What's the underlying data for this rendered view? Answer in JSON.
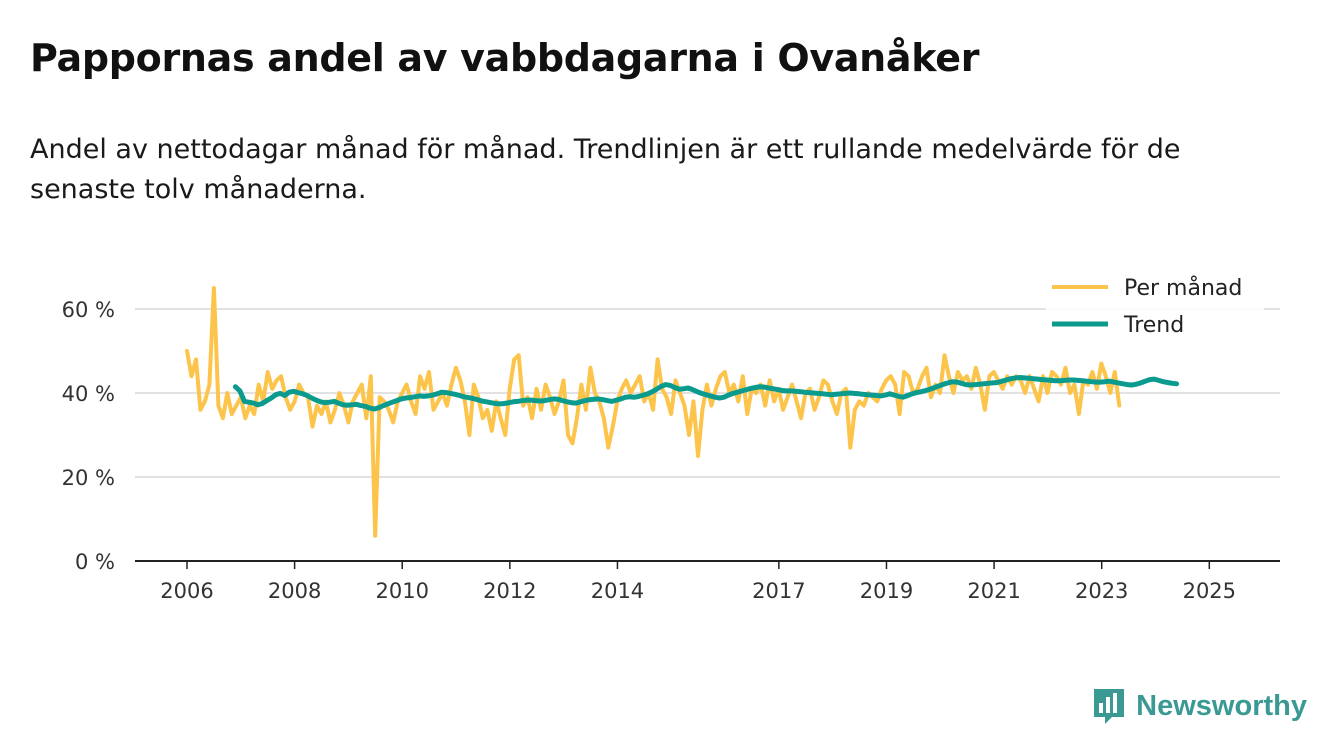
{
  "title": "Pappornas andel av vabbdagarna i Ovanåker",
  "subtitle": "Andel av nettodagar månad för månad. Trendlinjen är ett rullande medelvärde för de senaste tolv månaderna.",
  "brand": {
    "name": "Newsworthy",
    "color": "#3a9a93",
    "icon": "bar-chart-speech-bubble-icon"
  },
  "chart_data": {
    "type": "line",
    "title": "Pappornas andel av vabbdagarna i Ovanåker",
    "xlabel": "",
    "ylabel": "",
    "ylim": [
      0,
      70
    ],
    "xlim": [
      2006.0,
      2026.45
    ],
    "grid": true,
    "legend_position": "top-right",
    "y_ticks": [
      {
        "value": 0,
        "label": "0 %"
      },
      {
        "value": 20,
        "label": "20 %"
      },
      {
        "value": 40,
        "label": "40 %"
      },
      {
        "value": 60,
        "label": "60 %"
      }
    ],
    "x_ticks": [
      {
        "value": 2006,
        "label": "2006"
      },
      {
        "value": 2008,
        "label": "2008"
      },
      {
        "value": 2010,
        "label": "2010"
      },
      {
        "value": 2012,
        "label": "2012"
      },
      {
        "value": 2014,
        "label": "2014"
      },
      {
        "value": 2017,
        "label": "2017"
      },
      {
        "value": 2019,
        "label": "2019"
      },
      {
        "value": 2021,
        "label": "2021"
      },
      {
        "value": 2023,
        "label": "2023"
      },
      {
        "value": 2025,
        "label": "2025"
      }
    ],
    "series": [
      {
        "name": "Per månad",
        "color": "#fcc44a",
        "x_start": 2006.0,
        "step": 0.0833,
        "values": [
          50,
          44,
          48,
          36,
          38,
          42,
          65,
          37,
          34,
          40,
          35,
          37,
          39,
          34,
          37,
          35,
          42,
          38,
          45,
          41,
          43,
          44,
          39,
          36,
          38,
          42,
          40,
          39,
          32,
          37,
          35,
          38,
          33,
          36,
          40,
          37,
          33,
          38,
          40,
          42,
          34,
          44,
          6,
          39,
          38,
          36,
          33,
          38,
          40,
          42,
          38,
          35,
          44,
          41,
          45,
          36,
          38,
          40,
          37,
          42,
          46,
          43,
          38,
          30,
          42,
          39,
          34,
          36,
          31,
          38,
          34,
          30,
          41,
          48,
          49,
          37,
          39,
          34,
          41,
          36,
          42,
          39,
          35,
          38,
          43,
          30,
          28,
          34,
          42,
          36,
          46,
          40,
          38,
          34,
          27,
          32,
          38,
          41,
          43,
          40,
          42,
          44,
          38,
          40,
          36,
          48,
          41,
          39,
          35,
          43,
          40,
          37,
          30,
          38,
          25,
          36,
          42,
          37,
          41,
          44,
          45,
          40,
          42,
          38,
          44,
          35,
          41,
          40,
          42,
          37,
          43,
          38,
          41,
          36,
          39,
          42,
          38,
          34,
          40,
          41,
          36,
          39,
          43,
          42,
          38,
          35,
          40,
          41,
          27,
          36,
          38,
          37,
          40,
          39,
          38,
          41,
          43,
          44,
          42,
          35,
          45,
          44,
          40,
          41,
          44,
          46,
          39,
          42,
          40,
          49,
          44,
          40,
          45,
          43,
          44,
          41,
          46,
          42,
          36,
          44,
          45,
          43,
          41,
          44,
          42,
          44,
          43,
          40,
          44,
          41,
          38,
          44,
          40,
          45,
          44,
          42,
          46,
          40,
          42,
          35,
          43,
          42,
          45,
          41,
          47,
          44,
          40,
          45,
          37
        ]
      },
      {
        "name": "Trend",
        "color": "#0b9a8e",
        "x_start": 2006.9,
        "step": 0.0833,
        "values": [
          41.5,
          40.5,
          38.0,
          37.8,
          37.6,
          37.2,
          37.5,
          38.2,
          38.8,
          39.6,
          39.9,
          39.4,
          40.2,
          40.4,
          40.1,
          39.8,
          39.4,
          38.8,
          38.3,
          37.9,
          37.7,
          37.8,
          38.0,
          37.6,
          37.2,
          37.1,
          37.2,
          37.3,
          37.0,
          36.8,
          36.4,
          36.2,
          36.5,
          37.0,
          37.4,
          37.8,
          38.2,
          38.6,
          38.8,
          38.9,
          39.1,
          39.3,
          39.2,
          39.3,
          39.5,
          39.8,
          40.2,
          40.1,
          39.9,
          39.7,
          39.4,
          39.1,
          38.9,
          38.7,
          38.4,
          38.1,
          37.9,
          37.7,
          37.5,
          37.4,
          37.5,
          37.7,
          37.9,
          38.0,
          38.2,
          38.3,
          38.3,
          38.2,
          38.1,
          38.2,
          38.4,
          38.6,
          38.5,
          38.2,
          37.9,
          37.7,
          37.6,
          37.9,
          38.2,
          38.4,
          38.5,
          38.6,
          38.4,
          38.2,
          38.0,
          38.3,
          38.6,
          39.0,
          39.1,
          39.0,
          39.2,
          39.5,
          39.8,
          40.3,
          40.9,
          41.6,
          42.0,
          41.8,
          41.3,
          40.9,
          41.0,
          41.2,
          40.8,
          40.3,
          39.9,
          39.6,
          39.3,
          39.0,
          38.8,
          39.0,
          39.5,
          39.9,
          40.2,
          40.5,
          40.8,
          41.1,
          41.3,
          41.5,
          41.4,
          41.2,
          41.0,
          40.8,
          40.6,
          40.5,
          40.5,
          40.4,
          40.3,
          40.2,
          40.1,
          40.0,
          39.9,
          39.8,
          39.7,
          39.6,
          39.7,
          39.8,
          39.9,
          40.0,
          39.9,
          39.8,
          39.7,
          39.6,
          39.5,
          39.4,
          39.3,
          39.5,
          39.8,
          39.5,
          39.2,
          39.0,
          39.4,
          39.8,
          40.1,
          40.3,
          40.6,
          40.9,
          41.3,
          41.7,
          42.1,
          42.4,
          42.7,
          42.6,
          42.3,
          42.0,
          41.9,
          42.0,
          42.1,
          42.2,
          42.3,
          42.4,
          42.5,
          42.8,
          43.1,
          43.4,
          43.6,
          43.7,
          43.6,
          43.5,
          43.4,
          43.3,
          43.2,
          43.1,
          43.0,
          42.9,
          42.9,
          43.0,
          43.1,
          43.1,
          43.0,
          42.9,
          42.8,
          42.7,
          42.6,
          42.6,
          42.7,
          42.8,
          42.6,
          42.4,
          42.2,
          42.0,
          41.9,
          42.1,
          42.4,
          42.8,
          43.2,
          43.3,
          43.0,
          42.7,
          42.5,
          42.3,
          42.2
        ]
      }
    ]
  }
}
